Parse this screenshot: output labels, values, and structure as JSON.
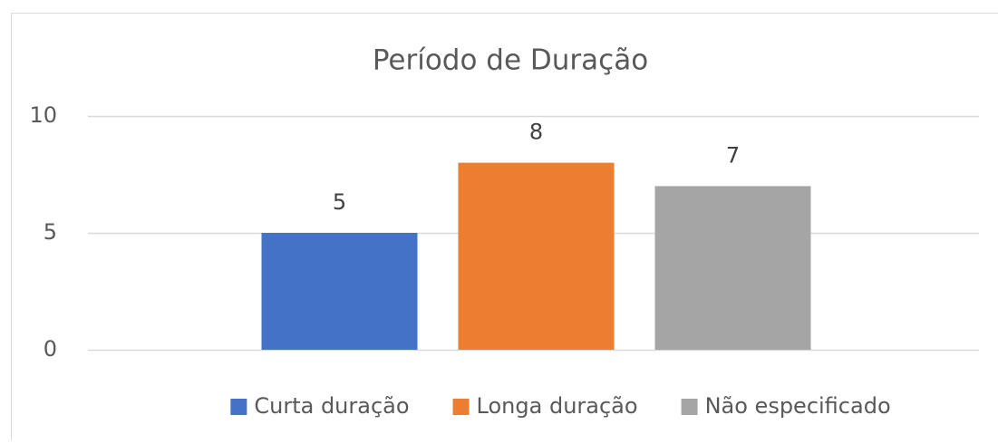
{
  "chart_data": {
    "type": "bar",
    "title": "Período de Duração",
    "categories": [
      null
    ],
    "series": [
      {
        "name": "Curta duração",
        "color": "#4472c4",
        "values": [
          5
        ]
      },
      {
        "name": "Longa duração",
        "color": "#ed7d31",
        "values": [
          8
        ]
      },
      {
        "name": "Não especificado",
        "color": "#a5a5a5",
        "values": [
          7
        ]
      }
    ],
    "ylim": [
      0,
      10
    ],
    "yticks": [
      0,
      5,
      10
    ],
    "grid": true,
    "legend": "bottom"
  }
}
